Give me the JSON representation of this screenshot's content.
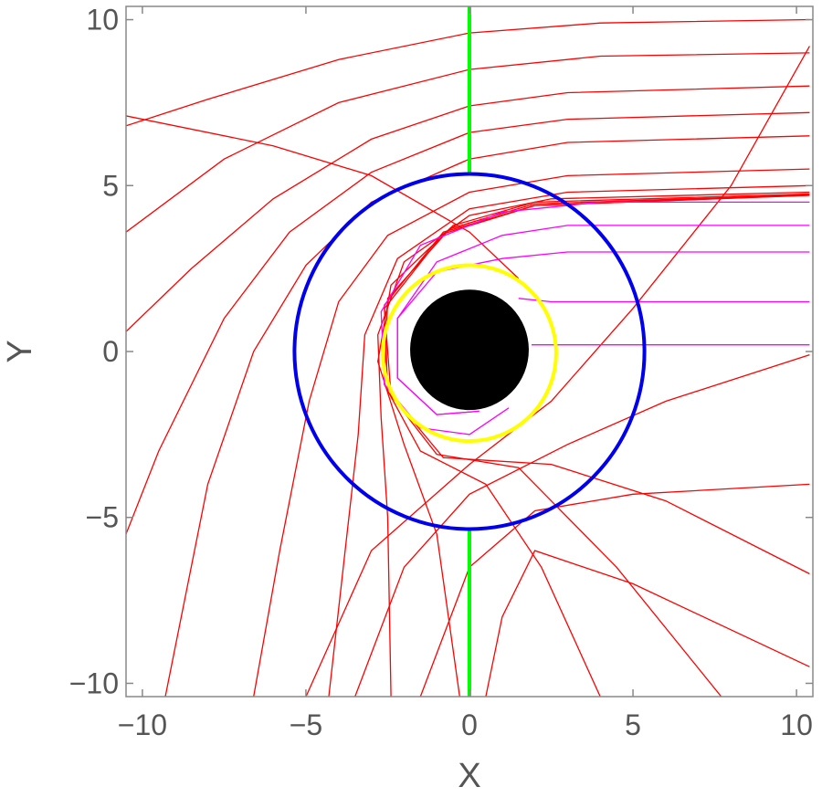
{
  "chart_data": {
    "type": "line",
    "xlabel": "X",
    "ylabel": "Y",
    "xlim": [
      -10.5,
      10.5
    ],
    "ylim": [
      -10.4,
      10.4
    ],
    "xticks": [
      {
        "value": -10,
        "label": "−10"
      },
      {
        "value": -5,
        "label": "−5"
      },
      0,
      5,
      10
    ],
    "yticks": [
      {
        "value": -10,
        "label": "−10"
      },
      {
        "value": -5,
        "label": "−5"
      },
      0,
      5,
      10
    ],
    "series": [
      {
        "color": "#ff0000",
        "x": [
          10.4,
          4,
          0,
          -4,
          -8,
          -10.5
        ],
        "y": [
          10,
          9.9,
          9.6,
          8.8,
          7.6,
          6.8
        ]
      },
      {
        "color": "#ff0000",
        "x": [
          10.4,
          4,
          0,
          -4,
          -7.5,
          -10.5
        ],
        "y": [
          9,
          8.9,
          8.5,
          7.5,
          5.8,
          3.6
        ]
      },
      {
        "color": "#ff0000",
        "x": [
          10.4,
          3,
          0,
          -3,
          -6,
          -8.5,
          -10.5
        ],
        "y": [
          8,
          7.8,
          7.4,
          6.4,
          4.6,
          2.5,
          0.6
        ]
      },
      {
        "color": "#ff0000",
        "x": [
          10.4,
          3,
          0,
          -3,
          -5.5,
          -7.5,
          -9.5,
          -10.5
        ],
        "y": [
          7.2,
          7,
          6.6,
          5.4,
          3.6,
          1,
          -3,
          -5.5
        ]
      },
      {
        "color": "#ff0000",
        "x": [
          10.4,
          3,
          0,
          -3,
          -5,
          -6.6,
          -8,
          -9.3
        ],
        "y": [
          6.5,
          6.3,
          5.8,
          4.5,
          2.6,
          0,
          -4,
          -10.4
        ]
      },
      {
        "color": "#ff0000",
        "x": [
          10.4,
          3,
          0,
          -2.5,
          -4,
          -4.9,
          -5.8,
          -6.6
        ],
        "y": [
          5.5,
          5.3,
          4.8,
          3.5,
          1.5,
          -1.5,
          -6,
          -10.4
        ]
      },
      {
        "color": "#ff0000",
        "x": [
          10.4,
          3,
          0,
          -2.2,
          -3.2,
          -3.4,
          -3.8,
          -4.3
        ],
        "y": [
          5,
          4.8,
          4.3,
          2.8,
          0.5,
          -2.5,
          -6,
          -10.4
        ]
      },
      {
        "color": "#ff0000",
        "x": [
          10.4,
          2.5,
          0,
          -2,
          -2.8,
          -2.7,
          -2.5,
          -2.4
        ],
        "y": [
          4.8,
          4.6,
          4.1,
          2.7,
          0.5,
          -2,
          -5,
          -10.4
        ]
      },
      {
        "color": "#ff0000",
        "x": [
          10.4,
          2,
          -0.5,
          -2.4,
          -2.8,
          -2,
          -1,
          -0.3
        ],
        "y": [
          4.75,
          4.5,
          3.8,
          2,
          -0.3,
          -2.8,
          -5.5,
          -10.4
        ]
      },
      {
        "color": "#ff0000",
        "x": [
          10.4,
          2,
          -0.6,
          -2.5,
          -2.6,
          -1.5,
          0.5,
          2.2,
          4
        ],
        "y": [
          4.72,
          4.45,
          3.7,
          1.6,
          -1,
          -3,
          -4,
          -6.5,
          -10.4
        ]
      },
      {
        "color": "#ff0000",
        "x": [
          10.4,
          2,
          -0.8,
          -2.6,
          -2.5,
          -1,
          1.5,
          4.5,
          7.7
        ],
        "y": [
          4.71,
          4.4,
          3.6,
          1.4,
          -1.2,
          -3.1,
          -3.5,
          -6.5,
          -10.4
        ]
      },
      {
        "color": "#ff0000",
        "x": [
          10.4,
          2,
          -0.8,
          -2.6,
          -2.4,
          -0.8,
          2.5,
          6,
          10.4
        ],
        "y": [
          4.705,
          4.4,
          3.55,
          1.3,
          -1.3,
          -3.2,
          -3.4,
          -4.5,
          -6.7
        ]
      },
      {
        "color": "#ff0000",
        "x": [
          10.4,
          8,
          5,
          2.5,
          0,
          -3,
          -5
        ],
        "y": [
          9.2,
          5,
          1.3,
          -1.5,
          -3.4,
          -6,
          -10.4
        ]
      },
      {
        "color": "#ff0000",
        "x": [
          10.4,
          6,
          3,
          0,
          -2,
          -3.5
        ],
        "y": [
          -0.1,
          -1.5,
          -2.8,
          -4.3,
          -6.5,
          -10.4
        ]
      },
      {
        "color": "#ff0000",
        "x": [
          10.4,
          5,
          2,
          0,
          -1.5
        ],
        "y": [
          -4,
          -4.3,
          -4.8,
          -6.5,
          -10.4
        ]
      },
      {
        "color": "#ff0000",
        "x": [
          10.4,
          5,
          2,
          1,
          0.5
        ],
        "y": [
          -9.5,
          -7,
          -6,
          -8,
          -10.4
        ]
      },
      {
        "color": "#ff0000",
        "x": [
          -10.5,
          -6,
          -3,
          0,
          1.5
        ],
        "y": [
          7.1,
          6.2,
          5.3,
          3.6,
          2.2
        ]
      },
      {
        "color": "#ff00ff",
        "x": [
          10.4,
          4,
          1,
          -1.5,
          -2.7,
          -2.6,
          -1.5,
          0,
          1.2
        ],
        "y": [
          4.5,
          4.5,
          4.2,
          3.2,
          1.2,
          -1,
          -2.3,
          -2.5,
          -1.7
        ]
      },
      {
        "color": "#ff00ff",
        "x": [
          10.4,
          3,
          1,
          -1,
          -2.2,
          -2.2,
          -1,
          0.3
        ],
        "y": [
          3.8,
          3.8,
          3.5,
          2.7,
          1,
          -0.8,
          -1.9,
          -1.8
        ]
      },
      {
        "color": "#ff00ff",
        "x": [
          10.4,
          3,
          1,
          -1,
          -2.2,
          -2.2,
          -1,
          0.3
        ],
        "y": [
          3,
          3,
          2.8,
          2.4,
          1,
          -0.8,
          -1.9,
          -1.8
        ]
      },
      {
        "color": "#ff00ff",
        "x": [
          10.4,
          2.5,
          1.5
        ],
        "y": [
          1.5,
          1.5,
          1.6
        ]
      },
      {
        "color": "#ff00ff",
        "x": [
          10.4,
          1.9
        ],
        "y": [
          0.2,
          0.2
        ]
      },
      {
        "color": "#00ff00",
        "x": [
          0,
          0
        ],
        "y": [
          5.3,
          10.4
        ]
      },
      {
        "color": "#00ff00",
        "x": [
          0,
          0
        ],
        "y": [
          -5.4,
          -10.4
        ]
      }
    ],
    "circles": [
      {
        "cx": 0,
        "cy": 0,
        "r": 5.35,
        "color": "#0000ee",
        "fill": "none"
      },
      {
        "cx": 0,
        "cy": -0.05,
        "r": 2.65,
        "color": "#ffff00",
        "fill": "none"
      },
      {
        "cx": 0,
        "cy": 0.05,
        "r": 1.8,
        "color": "#000000",
        "fill": "#000000"
      }
    ]
  }
}
